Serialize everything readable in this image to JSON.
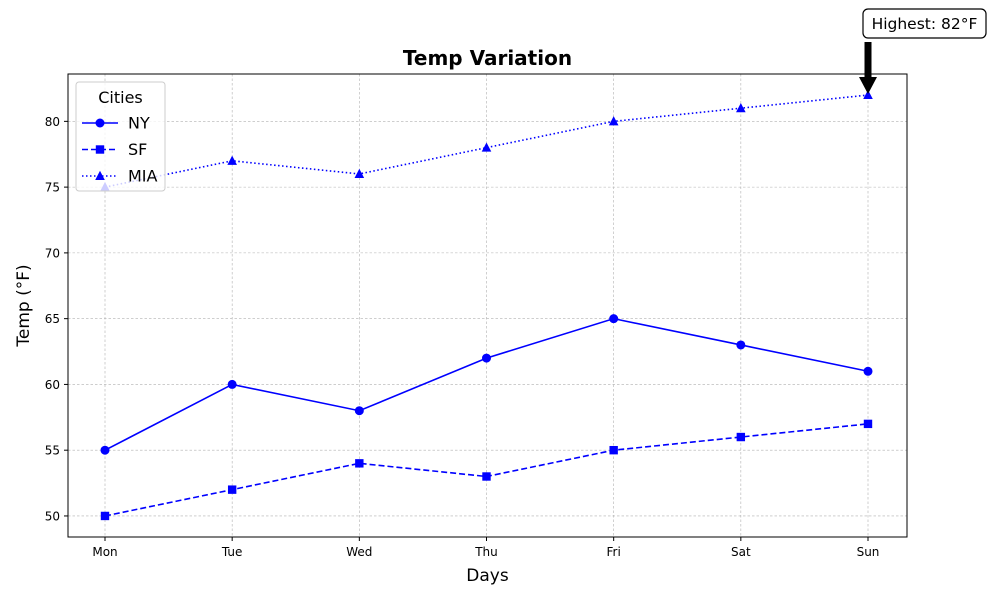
{
  "chart_data": {
    "type": "line",
    "title": "Temp Variation",
    "xlabel": "Days",
    "ylabel": "Temp (°F)",
    "categories": [
      "Mon",
      "Tue",
      "Wed",
      "Thu",
      "Fri",
      "Sat",
      "Sun"
    ],
    "ylim": [
      48.4,
      83.6
    ],
    "yticks": [
      50,
      55,
      60,
      65,
      70,
      75,
      80
    ],
    "grid": true,
    "legend": {
      "title": "Cities",
      "placement": "top-left"
    },
    "series": [
      {
        "name": "NY",
        "values": [
          55,
          60,
          58,
          62,
          65,
          63,
          61
        ],
        "color": "#0000ff",
        "linestyle": "solid",
        "marker": "circle"
      },
      {
        "name": "SF",
        "values": [
          50,
          52,
          54,
          53,
          55,
          56,
          57
        ],
        "color": "#0000ff",
        "linestyle": "dashed",
        "marker": "square"
      },
      {
        "name": "MIA",
        "values": [
          75,
          77,
          76,
          78,
          80,
          81,
          82
        ],
        "color": "#0000ff",
        "linestyle": "dotted",
        "marker": "triangle"
      }
    ],
    "annotations": [
      {
        "text": "Highest: 82°F",
        "x": "Sun",
        "y": 82
      }
    ]
  }
}
